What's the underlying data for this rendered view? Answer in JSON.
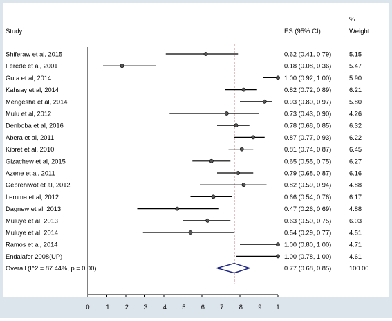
{
  "chart_data": {
    "type": "forest",
    "headers": {
      "study": "Study",
      "es": "ES (95% CI)",
      "weight_line1": "%",
      "weight_line2": "Weight"
    },
    "studies": [
      {
        "label": "Shiferaw et al, 2015",
        "es": 0.62,
        "lo": 0.41,
        "hi": 0.79,
        "es_text": "0.62 (0.41, 0.79)",
        "weight_text": "5.15"
      },
      {
        "label": "Ferede et al, 2001",
        "es": 0.18,
        "lo": 0.08,
        "hi": 0.36,
        "es_text": "0.18 (0.08, 0.36)",
        "weight_text": "5.47"
      },
      {
        "label": "Guta et al, 2014",
        "es": 1.0,
        "lo": 0.92,
        "hi": 1.0,
        "es_text": "1.00 (0.92, 1.00)",
        "weight_text": "5.90"
      },
      {
        "label": "Kahsay et al, 2014",
        "es": 0.82,
        "lo": 0.72,
        "hi": 0.89,
        "es_text": "0.82 (0.72, 0.89)",
        "weight_text": "6.21"
      },
      {
        "label": "Mengesha et al, 2014",
        "es": 0.93,
        "lo": 0.8,
        "hi": 0.97,
        "es_text": "0.93 (0.80, 0.97)",
        "weight_text": "5.80"
      },
      {
        "label": "Mulu et al, 2012",
        "es": 0.73,
        "lo": 0.43,
        "hi": 0.9,
        "es_text": "0.73 (0.43, 0.90)",
        "weight_text": "4.26"
      },
      {
        "label": "Denboba et al, 2016",
        "es": 0.78,
        "lo": 0.68,
        "hi": 0.85,
        "es_text": "0.78 (0.68, 0.85)",
        "weight_text": "6.32"
      },
      {
        "label": "Abera et al, 2011",
        "es": 0.87,
        "lo": 0.77,
        "hi": 0.93,
        "es_text": "0.87 (0.77, 0.93)",
        "weight_text": "6.22"
      },
      {
        "label": "Kibret et al, 2010",
        "es": 0.81,
        "lo": 0.74,
        "hi": 0.87,
        "es_text": "0.81 (0.74, 0.87)",
        "weight_text": "6.45"
      },
      {
        "label": "Gizachew et al, 2015",
        "es": 0.65,
        "lo": 0.55,
        "hi": 0.75,
        "es_text": "0.65 (0.55, 0.75)",
        "weight_text": "6.27"
      },
      {
        "label": "Azene et al, 2011",
        "es": 0.79,
        "lo": 0.68,
        "hi": 0.87,
        "es_text": "0.79 (0.68, 0.87)",
        "weight_text": "6.16"
      },
      {
        "label": "Gebrehiwot et al, 2012",
        "es": 0.82,
        "lo": 0.59,
        "hi": 0.94,
        "es_text": "0.82 (0.59, 0.94)",
        "weight_text": "4.88"
      },
      {
        "label": "Lemma et al, 2012",
        "es": 0.66,
        "lo": 0.54,
        "hi": 0.76,
        "es_text": "0.66 (0.54, 0.76)",
        "weight_text": "6.17"
      },
      {
        "label": "Dagnew et al, 2013",
        "es": 0.47,
        "lo": 0.26,
        "hi": 0.69,
        "es_text": "0.47 (0.26, 0.69)",
        "weight_text": "4.88"
      },
      {
        "label": "Muluye et al, 2013",
        "es": 0.63,
        "lo": 0.5,
        "hi": 0.75,
        "es_text": "0.63 (0.50, 0.75)",
        "weight_text": "6.03"
      },
      {
        "label": "Muluye et al, 2014",
        "es": 0.54,
        "lo": 0.29,
        "hi": 0.77,
        "es_text": "0.54 (0.29, 0.77)",
        "weight_text": "4.51"
      },
      {
        "label": "Ramos et al, 2014",
        "es": 1.0,
        "lo": 0.8,
        "hi": 1.0,
        "es_text": "1.00 (0.80, 1.00)",
        "weight_text": "4.71"
      },
      {
        "label": "Endalafer 2008(UP)",
        "es": 1.0,
        "lo": 0.78,
        "hi": 1.0,
        "es_text": "1.00 (0.78, 1.00)",
        "weight_text": "4.61"
      }
    ],
    "overall": {
      "label": "Overall  (I^2 = 87.44%, p = 0.00)",
      "es": 0.77,
      "lo": 0.68,
      "hi": 0.85,
      "es_text": "0.77 (0.68, 0.85)",
      "weight_text": "100.00"
    },
    "x_ticks": [
      {
        "value": 0,
        "label": "0"
      },
      {
        "value": 0.1,
        "label": ".1"
      },
      {
        "value": 0.2,
        "label": ".2"
      },
      {
        "value": 0.3,
        "label": ".3"
      },
      {
        "value": 0.4,
        "label": ".4"
      },
      {
        "value": 0.5,
        "label": ".5"
      },
      {
        "value": 0.6,
        "label": ".6"
      },
      {
        "value": 0.7,
        "label": ".7"
      },
      {
        "value": 0.8,
        "label": ".8"
      },
      {
        "value": 0.9,
        "label": ".9"
      },
      {
        "value": 1,
        "label": "1"
      }
    ],
    "xlim": [
      0,
      1
    ],
    "reference_line": 0.77,
    "colors": {
      "outer_background": "#dce4ec",
      "inner_background": "#ffffff",
      "reference_line": "#a83232",
      "diamond": "#1a237e",
      "ci_line": "#000000",
      "point": "#555555"
    }
  }
}
